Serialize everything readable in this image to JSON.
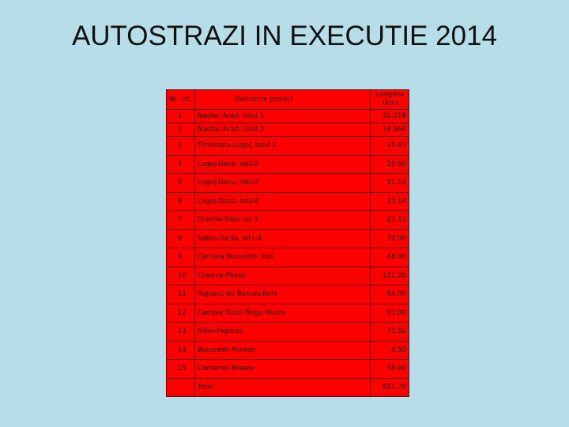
{
  "title": "AUTOSTRAZI IN EXECUTIE 2014",
  "table": {
    "header": [
      "Nr. crt.",
      "Denumire proiect",
      "Lungime (km)"
    ],
    "rows": [
      [
        "1",
        "Nadlac-Arad, lotul 1",
        "22.218"
      ],
      [
        "2",
        "Nadlac-Arad, lotul 2",
        "16.664"
      ],
      [
        "3",
        "Timisoara-Lugoj, lotul 2",
        "25.63"
      ],
      [
        "4",
        "Lugoj-Deva, lotul2",
        "28.60"
      ],
      [
        "5",
        "Lugoj-Deva, lotul3",
        "21.14"
      ],
      [
        "6",
        "Lugoj-Deva, lotul4",
        "22.14"
      ],
      [
        "7",
        "Orastie-Sibiu lot 3",
        "22.11"
      ],
      [
        "8",
        "Sebes-Turda, lot1-4",
        "70.00"
      ],
      [
        "9",
        "Centura Bucuresti Sud",
        "48.00"
      ],
      [
        "10",
        "Craiova-Pitesti",
        "121.20"
      ],
      [
        "11",
        "Suplacu de Barcau-Bors",
        "64.00"
      ],
      [
        "12",
        "Campia Turzii-Targu Mures",
        "53.00"
      ],
      [
        "13",
        "Sibiu-Fagaras",
        "72.50"
      ],
      [
        "14",
        "Bucuresti-Ploiesti",
        "6.50"
      ],
      [
        "15",
        "Comarnic-Brasov",
        "58.00"
      ]
    ],
    "total": {
      "label": "Total",
      "value": "651.70"
    }
  }
}
